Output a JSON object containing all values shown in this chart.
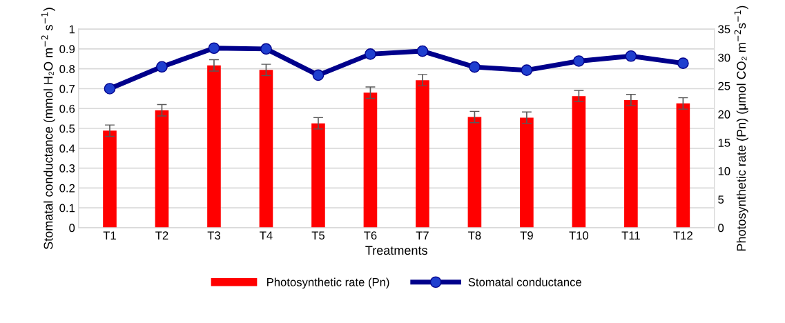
{
  "chart_data": {
    "type": "bar",
    "xlabel": "Treatments",
    "ylabel": "Stomatal conductance (mmol H₂O m$^{−2}$ s$^{−1}$)",
    "y2label": "Photosynthetic rate (Pn) (μmol CO₂ m$^{−2}$s$^{−1}$)",
    "categories": [
      "T1",
      "T2",
      "T3",
      "T4",
      "T5",
      "T6",
      "T7",
      "T8",
      "T9",
      "T10",
      "T11",
      "T12"
    ],
    "series": [
      {
        "name": "Photosynthetic rate (Pn)",
        "axis": "y2",
        "color": "#ff0000",
        "values": [
          17.1,
          20.7,
          28.6,
          27.8,
          18.4,
          23.8,
          26.0,
          19.5,
          19.4,
          23.2,
          22.5,
          21.9
        ],
        "errors": [
          1.0,
          1.0,
          1.0,
          1.0,
          1.0,
          1.0,
          1.0,
          1.0,
          1.0,
          1.0,
          1.0,
          1.0
        ]
      },
      {
        "name": "Stomatal conductance",
        "type": "line",
        "axis": "y",
        "color": "#00008b",
        "marker": "circle",
        "values": [
          0.7,
          0.81,
          0.904,
          0.9,
          0.768,
          0.874,
          0.889,
          0.809,
          0.793,
          0.839,
          0.864,
          0.828
        ]
      }
    ],
    "ylim": [
      0,
      1
    ],
    "yticks": [
      0,
      0.1,
      0.2,
      0.3,
      0.4,
      0.5,
      0.6,
      0.7,
      0.8,
      0.9,
      1
    ],
    "y2lim": [
      0,
      35
    ],
    "y2ticks": [
      0,
      5,
      10,
      15,
      20,
      25,
      30,
      35
    ],
    "grid": "y",
    "legend": "bottom"
  }
}
